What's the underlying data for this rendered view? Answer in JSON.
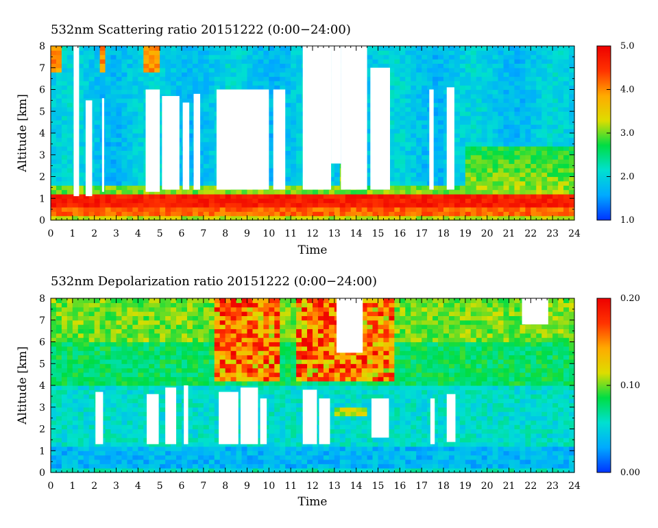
{
  "chart_data": [
    {
      "type": "heatmap",
      "title": "532nm Scattering ratio  20151222 (0:00−24:00)",
      "xlabel": "Time",
      "ylabel": "Altitude [km]",
      "xlim": [
        0,
        24
      ],
      "ylim": [
        0,
        8
      ],
      "x_ticks": [
        "0",
        "1",
        "2",
        "3",
        "4",
        "5",
        "6",
        "7",
        "8",
        "9",
        "10",
        "11",
        "12",
        "13",
        "14",
        "15",
        "16",
        "17",
        "18",
        "19",
        "20",
        "21",
        "22",
        "23",
        "24"
      ],
      "y_ticks": [
        "0",
        "1",
        "2",
        "3",
        "4",
        "5",
        "6",
        "7",
        "8"
      ],
      "colorbar": {
        "min": 1.0,
        "max": 5.0,
        "ticks": [
          "1.0",
          "2.0",
          "3.0",
          "4.0",
          "5.0"
        ]
      },
      "colormap": [
        "#0033ff",
        "#00aaff",
        "#00e0d0",
        "#00dd44",
        "#dddd00",
        "#ffaa00",
        "#ff3300",
        "#ee0000"
      ],
      "grid": false,
      "clear_regions": [
        {
          "t0": 1.05,
          "t1": 1.3,
          "z0": 1.1,
          "z1": 8.0
        },
        {
          "t0": 1.6,
          "t1": 1.9,
          "z0": 1.1,
          "z1": 5.5
        },
        {
          "t0": 2.35,
          "t1": 2.45,
          "z0": 1.3,
          "z1": 5.6
        },
        {
          "t0": 4.35,
          "t1": 5.0,
          "z0": 1.3,
          "z1": 6.0
        },
        {
          "t0": 5.1,
          "t1": 5.9,
          "z0": 1.4,
          "z1": 5.7
        },
        {
          "t0": 6.05,
          "t1": 6.35,
          "z0": 1.4,
          "z1": 5.4
        },
        {
          "t0": 6.55,
          "t1": 6.85,
          "z0": 1.4,
          "z1": 5.8
        },
        {
          "t0": 7.6,
          "t1": 10.0,
          "z0": 1.4,
          "z1": 6.0
        },
        {
          "t0": 10.2,
          "t1": 10.75,
          "z0": 1.4,
          "z1": 6.0
        },
        {
          "t0": 11.55,
          "t1": 12.85,
          "z0": 1.4,
          "z1": 8.0
        },
        {
          "t0": 12.85,
          "t1": 13.3,
          "z0": 2.6,
          "z1": 8.0
        },
        {
          "t0": 13.3,
          "t1": 14.5,
          "z0": 1.4,
          "z1": 8.0
        },
        {
          "t0": 14.65,
          "t1": 15.55,
          "z0": 1.4,
          "z1": 7.0
        },
        {
          "t0": 17.35,
          "t1": 17.55,
          "z0": 1.4,
          "z1": 6.0
        },
        {
          "t0": 18.15,
          "t1": 18.5,
          "z0": 1.4,
          "z1": 6.1
        }
      ]
    },
    {
      "type": "heatmap",
      "title": "532nm Depolarization ratio  20151222 (0:00−24:00)",
      "xlabel": "Time",
      "ylabel": "Altitude [km]",
      "xlim": [
        0,
        24
      ],
      "ylim": [
        0,
        8
      ],
      "x_ticks": [
        "0",
        "1",
        "2",
        "3",
        "4",
        "5",
        "6",
        "7",
        "8",
        "9",
        "10",
        "11",
        "12",
        "13",
        "14",
        "15",
        "16",
        "17",
        "18",
        "19",
        "20",
        "21",
        "22",
        "23",
        "24"
      ],
      "y_ticks": [
        "0",
        "1",
        "2",
        "3",
        "4",
        "5",
        "6",
        "7",
        "8"
      ],
      "colorbar": {
        "min": 0.0,
        "max": 0.2,
        "ticks": [
          "0.00",
          "0.10",
          "0.20"
        ]
      },
      "colormap": [
        "#0033ff",
        "#00aaff",
        "#00e0d0",
        "#00dd44",
        "#dddd00",
        "#ffaa00",
        "#ff3300",
        "#ee0000"
      ],
      "grid": false,
      "clear_regions": [
        {
          "t0": 2.05,
          "t1": 2.4,
          "z0": 1.3,
          "z1": 3.7
        },
        {
          "t0": 4.4,
          "t1": 4.95,
          "z0": 1.3,
          "z1": 3.6
        },
        {
          "t0": 5.25,
          "t1": 5.75,
          "z0": 1.3,
          "z1": 3.9
        },
        {
          "t0": 6.1,
          "t1": 6.3,
          "z0": 1.3,
          "z1": 4.0
        },
        {
          "t0": 7.7,
          "t1": 8.6,
          "z0": 1.3,
          "z1": 3.7
        },
        {
          "t0": 8.7,
          "t1": 9.5,
          "z0": 1.3,
          "z1": 3.9
        },
        {
          "t0": 9.6,
          "t1": 9.9,
          "z0": 1.3,
          "z1": 3.4
        },
        {
          "t0": 11.55,
          "t1": 12.2,
          "z0": 1.3,
          "z1": 3.8
        },
        {
          "t0": 12.3,
          "t1": 12.8,
          "z0": 1.3,
          "z1": 3.4
        },
        {
          "t0": 13.1,
          "t1": 14.3,
          "z0": 5.5,
          "z1": 8.0
        },
        {
          "t0": 14.7,
          "t1": 15.5,
          "z0": 1.6,
          "z1": 3.4
        },
        {
          "t0": 17.4,
          "t1": 17.6,
          "z0": 1.3,
          "z1": 3.4
        },
        {
          "t0": 18.15,
          "t1": 18.55,
          "z0": 1.4,
          "z1": 3.6
        },
        {
          "t0": 21.6,
          "t1": 22.8,
          "z0": 6.8,
          "z1": 8.0
        }
      ]
    }
  ]
}
